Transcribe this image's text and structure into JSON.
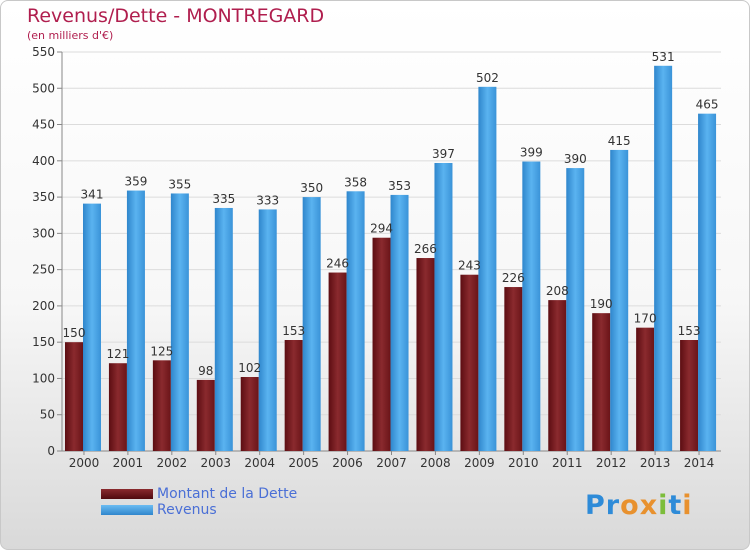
{
  "title": "Revenus/Dette - MONTREGARD",
  "subtitle": "(en milliers d'€)",
  "logo_text": "Proxiti",
  "chart_data": {
    "type": "bar",
    "categories": [
      "2000",
      "2001",
      "2002",
      "2003",
      "2004",
      "2005",
      "2006",
      "2007",
      "2008",
      "2009",
      "2010",
      "2011",
      "2012",
      "2013",
      "2014"
    ],
    "series": [
      {
        "name": "Montant de la Dette",
        "color": "#7b1a1f",
        "values": [
          150,
          121,
          125,
          98,
          102,
          153,
          246,
          294,
          266,
          243,
          226,
          208,
          190,
          170,
          153
        ]
      },
      {
        "name": "Revenus",
        "color": "#4aa3e6",
        "values": [
          341,
          359,
          355,
          335,
          333,
          350,
          358,
          353,
          397,
          502,
          399,
          390,
          415,
          531,
          465
        ]
      }
    ],
    "ylim": [
      0,
      550
    ],
    "yticks": [
      0,
      50,
      100,
      150,
      200,
      250,
      300,
      350,
      400,
      450,
      500,
      550
    ],
    "grid": true,
    "legend_position": "bottom-left"
  }
}
